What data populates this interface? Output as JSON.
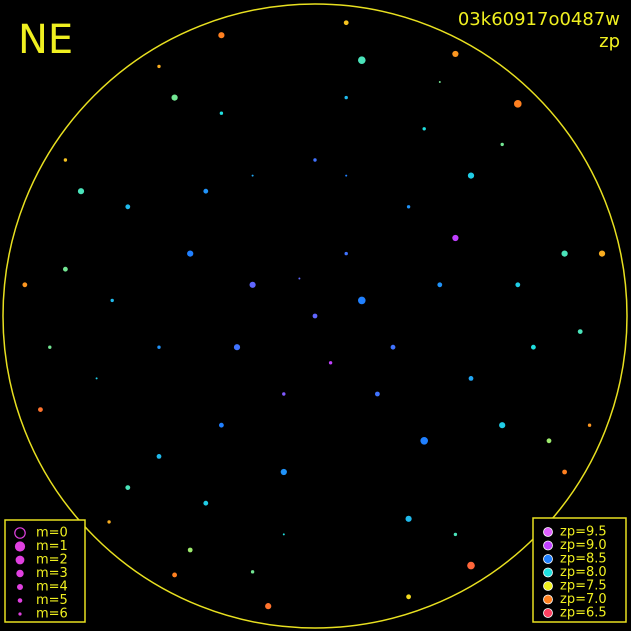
{
  "chart_data": {
    "type": "scatter",
    "title": "NE",
    "subtitle": "03k60917o0487w",
    "color_label": "zp",
    "xlim": [
      -1,
      1
    ],
    "ylim": [
      -1,
      1
    ],
    "size_legend": [
      {
        "value": 0,
        "label": "m=0"
      },
      {
        "value": 1,
        "label": "m=1"
      },
      {
        "value": 2,
        "label": "m=2"
      },
      {
        "value": 3,
        "label": "m=3"
      },
      {
        "value": 4,
        "label": "m=4"
      },
      {
        "value": 5,
        "label": "m=5"
      },
      {
        "value": 6,
        "label": "m=6"
      }
    ],
    "zp_legend": [
      {
        "value": 9.5,
        "label": "zp=9.5",
        "color": "#e060ff"
      },
      {
        "value": 9.0,
        "label": "zp=9.0",
        "color": "#c040ff"
      },
      {
        "value": 8.5,
        "label": "zp=8.5",
        "color": "#2080ff"
      },
      {
        "value": 8.0,
        "label": "zp=8.0",
        "color": "#20e0e0"
      },
      {
        "value": 7.5,
        "label": "zp=7.5",
        "color": "#f0f020"
      },
      {
        "value": 7.0,
        "label": "zp=7.0",
        "color": "#ff8020"
      },
      {
        "value": 6.5,
        "label": "zp=6.5",
        "color": "#ff4060"
      }
    ],
    "points": {
      "x": [
        0,
        0.1,
        -0.2,
        0.25,
        -0.1,
        0.15,
        -0.05,
        0.2,
        -0.25,
        0.05,
        0.4,
        -0.4,
        0.3,
        -0.3,
        0.1,
        -0.1,
        0.5,
        -0.5,
        0.35,
        -0.35,
        0,
        0.45,
        -0.2,
        0.65,
        -0.65,
        0.5,
        -0.5,
        0.1,
        -0.1,
        0.6,
        -0.6,
        0.35,
        -0.35,
        0.3,
        -0.3,
        0.7,
        -0.7,
        0.8,
        -0.8,
        0.6,
        -0.6,
        0.15,
        -0.2,
        0.75,
        -0.75,
        0.4,
        -0.4,
        0.45,
        -0.45,
        0.85,
        -0.85,
        0.92,
        -0.93,
        0.65,
        -0.66,
        0.1,
        -0.15,
        0.8,
        -0.8,
        0.45,
        -0.45,
        0.5,
        -0.5,
        0.3,
        -0.3,
        0.88,
        -0.88
      ],
      "y": [
        0,
        0.2,
        0.1,
        -0.1,
        -0.25,
        0.05,
        0.12,
        -0.25,
        -0.1,
        -0.15,
        0.1,
        0.2,
        0.35,
        -0.35,
        0.45,
        -0.5,
        -0.2,
        -0.1,
        -0.4,
        0.4,
        0.5,
        0.25,
        0.45,
        0.1,
        0.05,
        0.45,
        -0.45,
        0.7,
        -0.7,
        -0.35,
        0.35,
        0.6,
        -0.6,
        -0.65,
        0.65,
        -0.1,
        -0.2,
        0.2,
        0.15,
        0.55,
        -0.55,
        0.82,
        -0.82,
        -0.4,
        0.4,
        0.75,
        -0.75,
        -0.7,
        0.7,
        -0.05,
        -0.1,
        0.2,
        0.1,
        0.68,
        -0.66,
        0.94,
        -0.93,
        -0.5,
        0.5,
        0.84,
        -0.83,
        -0.8,
        0.8,
        -0.9,
        0.9,
        -0.35,
        -0.3
      ],
      "zp": [
        8.7,
        8.6,
        8.7,
        8.6,
        8.8,
        8.5,
        8.7,
        8.6,
        8.6,
        9.0,
        8.4,
        8.5,
        8.4,
        8.5,
        8.5,
        8.4,
        8.3,
        8.4,
        8.5,
        8.4,
        8.6,
        9.0,
        8.3,
        8.1,
        8.2,
        8.1,
        8.2,
        8.2,
        8.0,
        8.1,
        8.2,
        8.0,
        8.1,
        8.2,
        8.0,
        8.0,
        8.1,
        7.9,
        7.8,
        7.8,
        7.9,
        7.9,
        7.8,
        7.7,
        7.9,
        7.8,
        7.7,
        7.9,
        7.8,
        7.9,
        7.8,
        7.2,
        7.1,
        7.0,
        7.2,
        7.3,
        6.9,
        7.0,
        7.3,
        7.1,
        7.0,
        6.8,
        7.2,
        7.4,
        7.0,
        7.1,
        6.9
      ],
      "m": [
        4,
        5,
        3,
        4,
        5,
        2,
        6,
        4,
        3,
        5,
        4,
        3,
        5,
        4,
        6,
        3,
        4,
        5,
        2,
        4,
        5,
        3,
        6,
        4,
        5,
        3,
        4,
        5,
        6,
        3,
        4,
        5,
        4,
        3,
        5,
        4,
        6,
        3,
        4,
        5,
        4,
        2,
        5,
        4,
        3,
        6,
        4,
        5,
        3,
        4,
        5,
        3,
        4,
        2,
        5,
        4,
        3,
        4,
        5,
        3,
        4,
        2,
        5,
        4,
        3,
        5,
        4
      ]
    }
  }
}
